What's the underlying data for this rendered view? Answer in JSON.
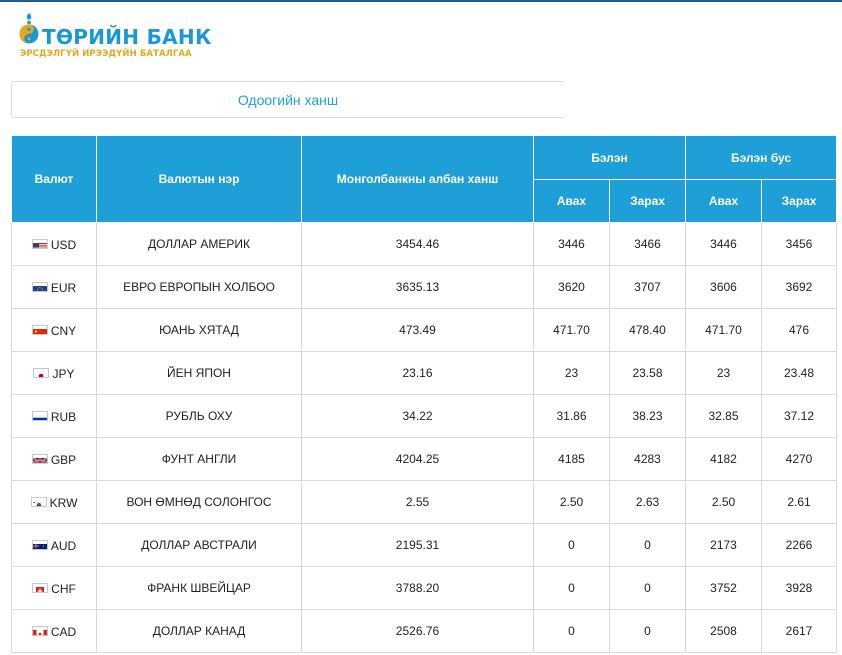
{
  "logo": {
    "name": "ТӨРИЙН БАНК",
    "tagline": "ЭРСДЭЛГҮЙ ИРЭЭДҮЙН БАТАЛГАА"
  },
  "tab": {
    "label": "Одоогийн ханш"
  },
  "table": {
    "headers": {
      "currency": "Валют",
      "currency_name": "Валютын нэр",
      "official_rate": "Монголбанкны албан ханш",
      "cash": "Бэлэн",
      "non_cash": "Бэлэн бус",
      "buy": "Авах",
      "sell": "Зарах"
    },
    "rows": [
      {
        "code": "USD",
        "flag": "us-flag-icon",
        "name": "ДОЛЛАР АМЕРИК",
        "official": "3454.46",
        "cash_buy": "3446",
        "cash_sell": "3466",
        "noncash_buy": "3446",
        "noncash_sell": "3456"
      },
      {
        "code": "EUR",
        "flag": "eu-flag-icon",
        "name": "ЕВРО ЕВРОПЫН ХОЛБОО",
        "official": "3635.13",
        "cash_buy": "3620",
        "cash_sell": "3707",
        "noncash_buy": "3606",
        "noncash_sell": "3692"
      },
      {
        "code": "CNY",
        "flag": "cn-flag-icon",
        "name": "ЮАНЬ ХЯТАД",
        "official": "473.49",
        "cash_buy": "471.70",
        "cash_sell": "478.40",
        "noncash_buy": "471.70",
        "noncash_sell": "476"
      },
      {
        "code": "JPY",
        "flag": "jp-flag-icon",
        "name": "ЙЕН ЯПОН",
        "official": "23.16",
        "cash_buy": "23",
        "cash_sell": "23.58",
        "noncash_buy": "23",
        "noncash_sell": "23.48"
      },
      {
        "code": "RUB",
        "flag": "ru-flag-icon",
        "name": "РУБЛЬ ОХУ",
        "official": "34.22",
        "cash_buy": "31.86",
        "cash_sell": "38.23",
        "noncash_buy": "32.85",
        "noncash_sell": "37.12"
      },
      {
        "code": "GBP",
        "flag": "gb-flag-icon",
        "name": "ФУНТ АНГЛИ",
        "official": "4204.25",
        "cash_buy": "4185",
        "cash_sell": "4283",
        "noncash_buy": "4182",
        "noncash_sell": "4270"
      },
      {
        "code": "KRW",
        "flag": "kr-flag-icon",
        "name": "ВОН ӨМНӨД СОЛОНГОС",
        "official": "2.55",
        "cash_buy": "2.50",
        "cash_sell": "2.63",
        "noncash_buy": "2.50",
        "noncash_sell": "2.61"
      },
      {
        "code": "AUD",
        "flag": "au-flag-icon",
        "name": "ДОЛЛАР АВСТРАЛИ",
        "official": "2195.31",
        "cash_buy": "0",
        "cash_sell": "0",
        "noncash_buy": "2173",
        "noncash_sell": "2266"
      },
      {
        "code": "CHF",
        "flag": "ch-flag-icon",
        "name": "ФРАНК ШВЕЙЦАР",
        "official": "3788.20",
        "cash_buy": "0",
        "cash_sell": "0",
        "noncash_buy": "3752",
        "noncash_sell": "3928"
      },
      {
        "code": "CAD",
        "flag": "ca-flag-icon",
        "name": "ДОЛЛАР КАНАД",
        "official": "2526.76",
        "cash_buy": "0",
        "cash_sell": "0",
        "noncash_buy": "2508",
        "noncash_sell": "2617"
      }
    ]
  },
  "colors": {
    "accent": "#1f9fd8",
    "logo_blue": "#1b97d5",
    "logo_gold": "#e3a81c"
  }
}
